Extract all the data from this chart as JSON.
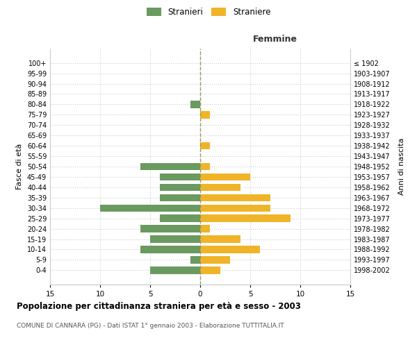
{
  "age_groups": [
    "100+",
    "95-99",
    "90-94",
    "85-89",
    "80-84",
    "75-79",
    "70-74",
    "65-69",
    "60-64",
    "55-59",
    "50-54",
    "45-49",
    "40-44",
    "35-39",
    "30-34",
    "25-29",
    "20-24",
    "15-19",
    "10-14",
    "5-9",
    "0-4"
  ],
  "birth_years": [
    "≤ 1902",
    "1903-1907",
    "1908-1912",
    "1913-1917",
    "1918-1922",
    "1923-1927",
    "1928-1932",
    "1933-1937",
    "1938-1942",
    "1943-1947",
    "1948-1952",
    "1953-1957",
    "1958-1962",
    "1963-1967",
    "1968-1972",
    "1973-1977",
    "1978-1982",
    "1983-1987",
    "1988-1992",
    "1993-1997",
    "1998-2002"
  ],
  "males": [
    0,
    0,
    0,
    0,
    1,
    0,
    0,
    0,
    0,
    0,
    6,
    4,
    4,
    4,
    10,
    4,
    6,
    5,
    6,
    1,
    5
  ],
  "females": [
    0,
    0,
    0,
    0,
    0,
    1,
    0,
    0,
    1,
    0,
    1,
    5,
    4,
    7,
    7,
    9,
    1,
    4,
    6,
    3,
    2
  ],
  "male_color": "#6a9a5f",
  "female_color": "#f0b429",
  "grid_color": "#cccccc",
  "center_line_color": "#999966",
  "bg_color": "#ffffff",
  "title": "Popolazione per cittadinanza straniera per età e sesso - 2003",
  "subtitle": "COMUNE DI CANNARA (PG) - Dati ISTAT 1° gennaio 2003 - Elaborazione TUTTITALIA.IT",
  "xlabel_right": "Femmine",
  "ylabel_left": "Fasce di età",
  "ylabel_right": "Anni di nascita",
  "legend_male": "Stranieri",
  "legend_female": "Straniere",
  "xlim": 15
}
